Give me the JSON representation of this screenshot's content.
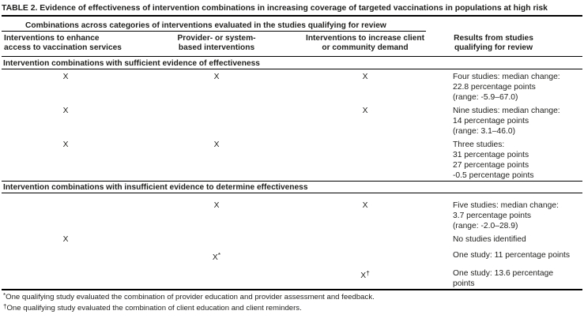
{
  "title": "TABLE 2. Evidence of effectiveness of intervention combinations in increasing coverage of targeted vaccinations in populations at high risk",
  "table": {
    "spanner": "Combinations across categories of interventions evaluated in the studies qualifying for review",
    "columns": {
      "access": "Interventions to enhance access to vaccination services",
      "provider": "Provider- or system-based interventions",
      "demand": "Interventions to increase client or community demand",
      "results": "Results from studies qualifying for review"
    },
    "sections": [
      {
        "header": "Intervention combinations with sufficient evidence of effectiveness",
        "rows": [
          {
            "access": "X",
            "provider": "X",
            "demand": "X",
            "demand_sup": "",
            "provider_sup": "",
            "results": [
              "Four studies: median change:",
              "22.8 percentage points",
              "(range: -5.9–67.0)"
            ]
          },
          {
            "access": "X",
            "provider": "",
            "demand": "X",
            "demand_sup": "",
            "provider_sup": "",
            "results": [
              "Nine studies: median change:",
              "14 percentage points",
              "(range: 3.1–46.0)"
            ]
          },
          {
            "access": "X",
            "provider": "X",
            "demand": "",
            "demand_sup": "",
            "provider_sup": "",
            "results": [
              "Three studies:",
              "31 percentage points",
              "27 percentage points",
              "-0.5 percentage points"
            ]
          }
        ]
      },
      {
        "header": "Intervention combinations with insufficient evidence to determine effectiveness",
        "rows": [
          {
            "access": "",
            "provider": "X",
            "demand": "X",
            "demand_sup": "",
            "provider_sup": "",
            "results": [
              "Five studies: median change:",
              "3.7 percentage points",
              "(range: -2.0–28.9)"
            ]
          },
          {
            "access": "X",
            "provider": "",
            "demand": "",
            "demand_sup": "",
            "provider_sup": "",
            "results": [
              "No studies identified"
            ]
          },
          {
            "access": "",
            "provider": "X",
            "provider_sup": "*",
            "demand": "",
            "demand_sup": "",
            "results": [
              "One study: 11 percentage points"
            ]
          },
          {
            "access": "",
            "provider": "",
            "provider_sup": "",
            "demand": "X",
            "demand_sup": "†",
            "results": [
              "One study: 13.6 percentage",
              "points"
            ]
          }
        ]
      }
    ]
  },
  "footnotes": [
    {
      "marker": "*",
      "text": "One qualifying study evaluated the combination of provider education and provider assessment and feedback."
    },
    {
      "marker": "†",
      "text": "One qualifying study evaluated the combination of client education and client reminders."
    }
  ],
  "colors": {
    "text": "#1f1f1d",
    "rule": "#000000",
    "background": "#ffffff"
  }
}
